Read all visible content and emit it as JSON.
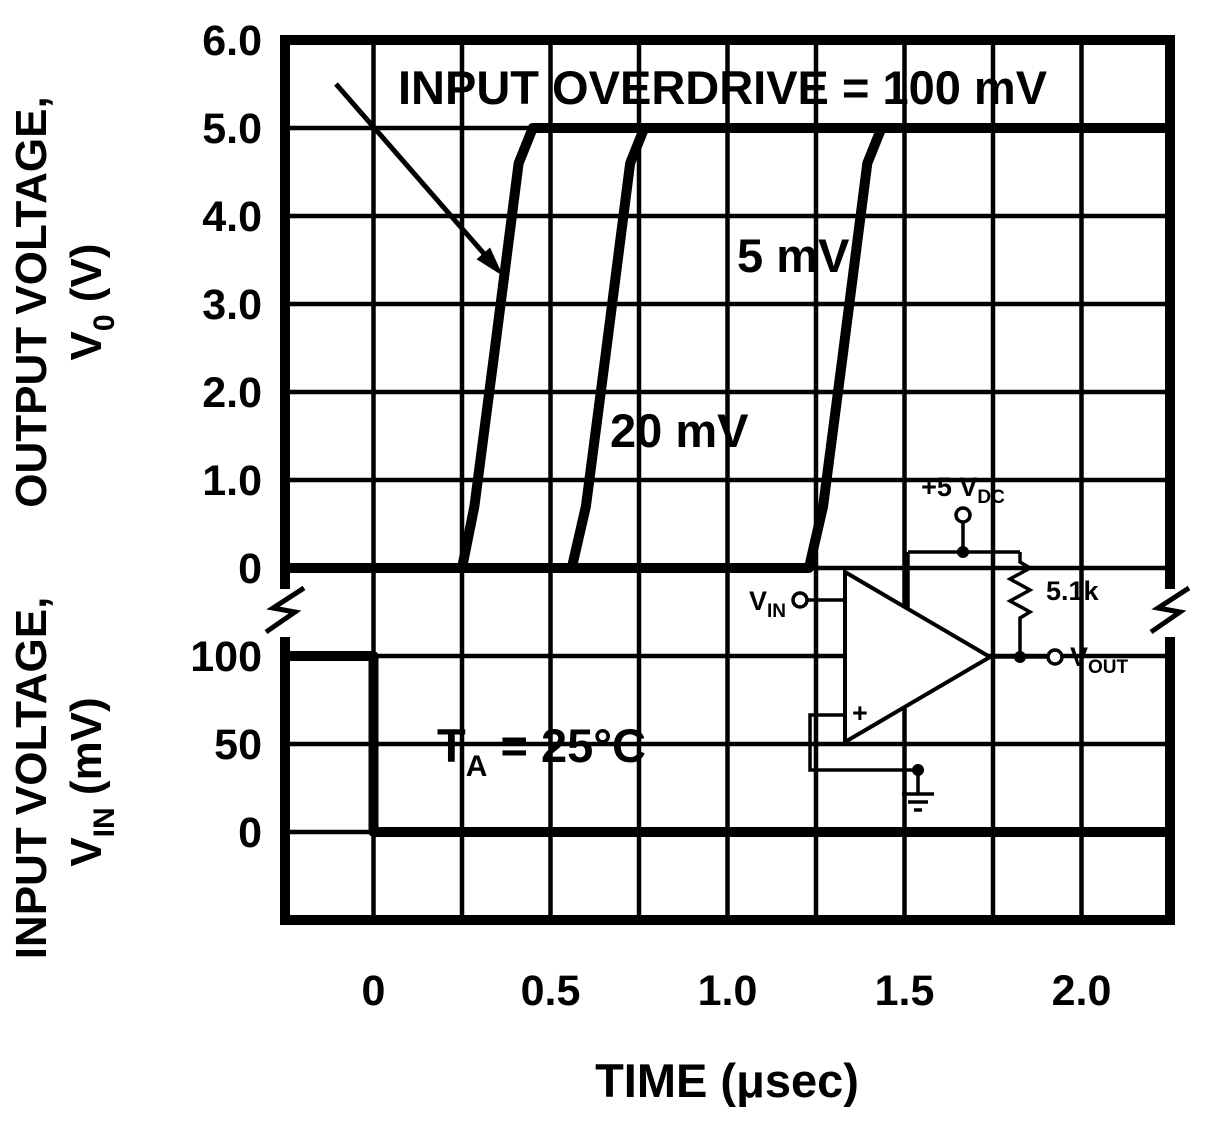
{
  "chart_data": {
    "type": "line",
    "xlabel": "TIME (μsec)",
    "xlim": [
      -0.25,
      2.25
    ],
    "x_grid_step": 0.25,
    "x_ticks": [
      {
        "value": 0,
        "label": "0"
      },
      {
        "value": 0.5,
        "label": "0.5"
      },
      {
        "value": 1.0,
        "label": "1.0"
      },
      {
        "value": 1.5,
        "label": "1.5"
      },
      {
        "value": 2.0,
        "label": "2.0"
      }
    ],
    "panels": {
      "output": {
        "ylabel_line1": "OUTPUT VOLTAGE,",
        "ylabel_sym": "V",
        "ylabel_sub": "0",
        "ylabel_rest": " (V)",
        "ylim": [
          0,
          6.0
        ],
        "y_ticks": [
          {
            "value": 6.0,
            "label": "6.0"
          },
          {
            "value": 5.0,
            "label": "5.0"
          },
          {
            "value": 4.0,
            "label": "4.0"
          },
          {
            "value": 3.0,
            "label": "3.0"
          },
          {
            "value": 2.0,
            "label": "2.0"
          },
          {
            "value": 1.0,
            "label": "1.0"
          },
          {
            "value": 0,
            "label": "0"
          }
        ]
      },
      "input": {
        "ylabel_line1": "INPUT VOLTAGE,",
        "ylabel_sym": "V",
        "ylabel_sub": "IN",
        "ylabel_rest": " (mV)",
        "ylim": [
          -50,
          150
        ],
        "y_ticks": [
          {
            "value": 100,
            "label": "100"
          },
          {
            "value": 50,
            "label": "50"
          },
          {
            "value": 0,
            "label": "0"
          }
        ]
      }
    },
    "series": [
      {
        "name": "output 100 mV overdrive",
        "panel": "output",
        "points": [
          [
            -0.25,
            0
          ],
          [
            0.25,
            0
          ],
          [
            0.285,
            0.7
          ],
          [
            0.34,
            2.4
          ],
          [
            0.41,
            4.6
          ],
          [
            0.45,
            5.0
          ],
          [
            2.25,
            5.0
          ]
        ]
      },
      {
        "name": "output 20 mV overdrive",
        "panel": "output",
        "points": [
          [
            -0.25,
            0
          ],
          [
            0.56,
            0
          ],
          [
            0.6,
            0.7
          ],
          [
            0.655,
            2.4
          ],
          [
            0.725,
            4.6
          ],
          [
            0.765,
            5.0
          ],
          [
            2.25,
            5.0
          ]
        ]
      },
      {
        "name": "output 5 mV overdrive",
        "panel": "output",
        "points": [
          [
            -0.25,
            0
          ],
          [
            1.23,
            0
          ],
          [
            1.27,
            0.7
          ],
          [
            1.325,
            2.4
          ],
          [
            1.395,
            4.6
          ],
          [
            1.435,
            5.0
          ],
          [
            2.25,
            5.0
          ]
        ]
      },
      {
        "name": "input voltage step",
        "panel": "input",
        "points": [
          [
            -0.25,
            100
          ],
          [
            0,
            100
          ],
          [
            0,
            0
          ],
          [
            2.25,
            0
          ]
        ]
      }
    ],
    "annotations": {
      "overdrive": "INPUT OVERDRIVE = 100 mV",
      "label_5mv": "5 mV",
      "label_20mv": "20 mV",
      "temp_t": "T",
      "temp_sub": "A",
      "temp_rest": " = 25°C"
    }
  },
  "circuit": {
    "supply": "+5 V",
    "supply_sub": "DC",
    "resistor": "5.1k",
    "vin": "V",
    "vin_sub": "IN",
    "vout": "V",
    "vout_sub": "OUT",
    "plus": "+"
  }
}
